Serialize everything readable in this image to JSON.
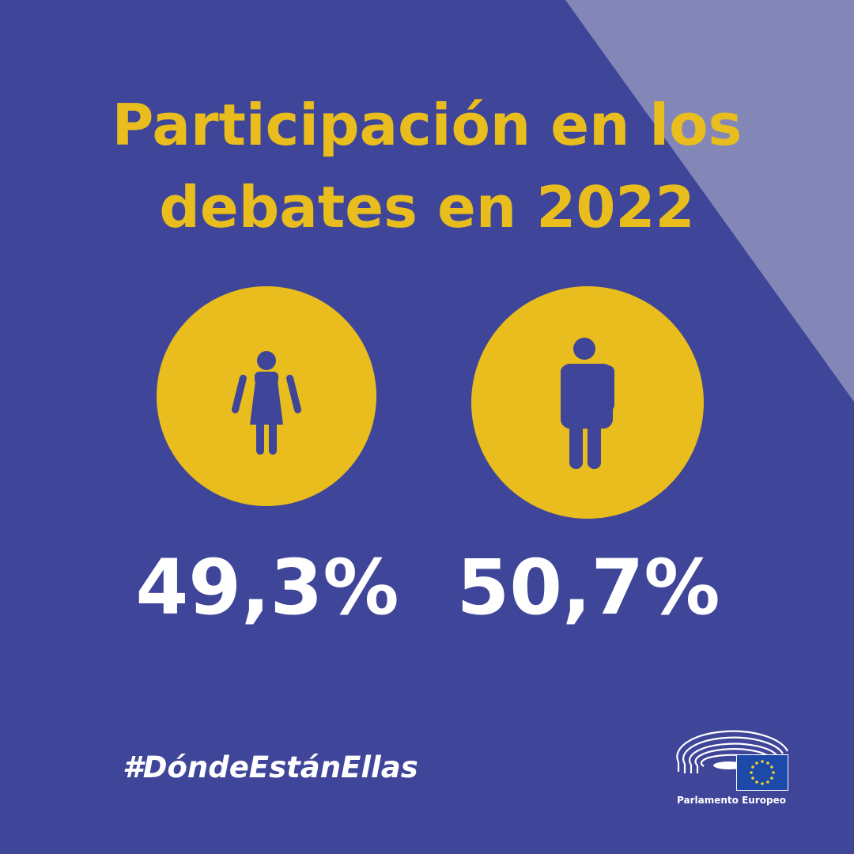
{
  "colors": {
    "background": "#3f4598",
    "accent_triangle": "#8287b8",
    "yellow": "#e8bd1d",
    "figure": "#3f4598",
    "text_white": "#ffffff"
  },
  "title": {
    "line1": "Participación en los",
    "line2": "debates en 2022"
  },
  "women": {
    "icon": "woman-icon",
    "value": "49,3%"
  },
  "men": {
    "icon": "man-icon",
    "value": "50,7%"
  },
  "hashtag": "#DóndeEstánEllas",
  "logo": {
    "icon": "hemicycle-icon",
    "flag": "eu-flag-icon",
    "label": "Parlamento Europeo"
  }
}
